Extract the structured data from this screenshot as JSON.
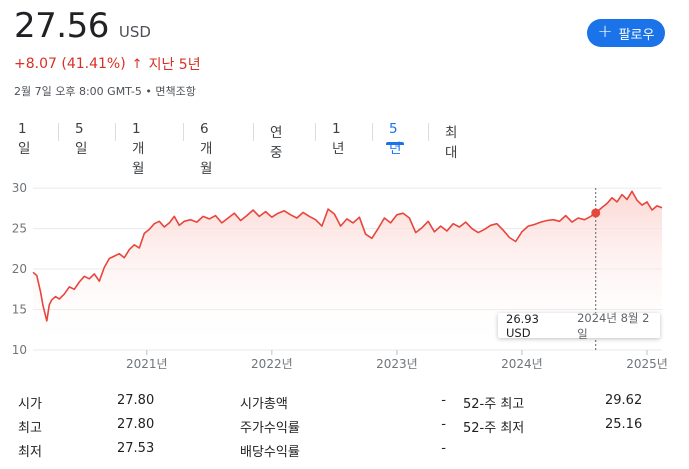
{
  "quote": {
    "price": "27.56",
    "currency": "USD",
    "change": "+8.07 (41.41%)",
    "change_arrow": "↑",
    "period_label": "지난 5년",
    "timestamp": "2월 7일 오후 8:00 GMT-5 • 면책조항"
  },
  "follow_button": {
    "label": "팔로우"
  },
  "range_tabs": [
    {
      "label": "1일"
    },
    {
      "label": "5일"
    },
    {
      "label": "1개월"
    },
    {
      "label": "6개월"
    },
    {
      "label": "연중"
    },
    {
      "label": "1년"
    },
    {
      "label": "5년",
      "active": true
    },
    {
      "label": "최대"
    }
  ],
  "tooltip": {
    "value": "26.93 USD",
    "date": "2024년 8월 2일"
  },
  "colors": {
    "line": "#e8453c",
    "accent": "#1a73e8",
    "fill_top": "#fbd6d2"
  },
  "chart_data": {
    "type": "area",
    "title": "",
    "xlabel": "",
    "ylabel": "",
    "ylim": [
      10,
      31
    ],
    "yticks": [
      10,
      15,
      20,
      25,
      30
    ],
    "xtick_labels": [
      "2021년",
      "2022년",
      "2023년",
      "2024년",
      "2025년"
    ],
    "xtick_values": [
      2021.0,
      2022.0,
      2023.0,
      2024.0,
      2025.0
    ],
    "xlim": [
      2020.09,
      2025.12
    ],
    "grid": true,
    "highlight": {
      "x": 2024.59,
      "y": 26.93
    },
    "series": [
      {
        "x": [
          2020.09,
          2020.12,
          2020.15,
          2020.17,
          2020.2,
          2020.22,
          2020.24,
          2020.27,
          2020.3,
          2020.34,
          2020.38,
          2020.42,
          2020.46,
          2020.5,
          2020.54,
          2020.58,
          2020.62,
          2020.66,
          2020.7,
          2020.74,
          2020.78,
          2020.82,
          2020.86,
          2020.9,
          2020.94,
          2020.98,
          2021.02,
          2021.06,
          2021.1,
          2021.14,
          2021.18,
          2021.22,
          2021.26,
          2021.3,
          2021.35,
          2021.4,
          2021.45,
          2021.5,
          2021.55,
          2021.6,
          2021.65,
          2021.7,
          2021.75,
          2021.8,
          2021.85,
          2021.9,
          2021.95,
          2022.0,
          2022.05,
          2022.1,
          2022.15,
          2022.2,
          2022.25,
          2022.3,
          2022.35,
          2022.4,
          2022.45,
          2022.5,
          2022.55,
          2022.6,
          2022.65,
          2022.7,
          2022.75,
          2022.8,
          2022.85,
          2022.9,
          2022.95,
          2023.0,
          2023.05,
          2023.1,
          2023.15,
          2023.2,
          2023.25,
          2023.3,
          2023.35,
          2023.4,
          2023.45,
          2023.5,
          2023.55,
          2023.6,
          2023.65,
          2023.7,
          2023.75,
          2023.8,
          2023.85,
          2023.9,
          2023.95,
          2024.0,
          2024.05,
          2024.1,
          2024.15,
          2024.2,
          2024.25,
          2024.3,
          2024.35,
          2024.4,
          2024.45,
          2024.5,
          2024.55,
          2024.59,
          2024.64,
          2024.68,
          2024.72,
          2024.76,
          2024.8,
          2024.84,
          2024.88,
          2024.92,
          2024.96,
          2025.0,
          2025.04,
          2025.08,
          2025.12
        ],
        "values": [
          19.6,
          19.2,
          17.2,
          15.5,
          13.6,
          15.6,
          16.2,
          16.6,
          16.3,
          16.9,
          17.8,
          17.5,
          18.4,
          19.1,
          18.8,
          19.4,
          18.5,
          20.2,
          21.3,
          21.6,
          21.9,
          21.4,
          22.4,
          23.0,
          22.6,
          24.4,
          24.9,
          25.6,
          25.9,
          25.2,
          25.7,
          26.5,
          25.4,
          25.9,
          26.1,
          25.8,
          26.5,
          26.2,
          26.6,
          25.7,
          26.3,
          26.9,
          26.0,
          26.6,
          27.3,
          26.5,
          27.1,
          26.4,
          26.9,
          27.2,
          26.7,
          26.3,
          27.0,
          26.5,
          26.1,
          25.3,
          27.4,
          26.8,
          25.3,
          26.2,
          25.7,
          26.4,
          24.3,
          23.8,
          25.0,
          26.3,
          25.7,
          26.7,
          26.9,
          26.3,
          24.5,
          25.1,
          25.9,
          24.6,
          25.3,
          24.7,
          25.6,
          25.2,
          25.8,
          25.0,
          24.5,
          24.9,
          25.4,
          25.6,
          24.8,
          23.9,
          23.4,
          24.6,
          25.3,
          25.5,
          25.8,
          26.0,
          26.1,
          25.9,
          26.6,
          25.8,
          26.3,
          26.1,
          26.5,
          26.93,
          27.6,
          28.1,
          28.8,
          28.3,
          29.2,
          28.6,
          29.6,
          28.5,
          27.9,
          28.3,
          27.3,
          27.8,
          27.56
        ]
      }
    ]
  },
  "stats": [
    {
      "label": "시가",
      "value": "27.80"
    },
    {
      "label": "최고",
      "value": "27.80"
    },
    {
      "label": "최저",
      "value": "27.53"
    },
    {
      "label": "시가총액",
      "value": "-"
    },
    {
      "label": "주가수익률",
      "value": "-"
    },
    {
      "label": "배당수익률",
      "value": "-"
    },
    {
      "label": "52-주 최고",
      "value": "29.62"
    },
    {
      "label": "52-주 최저",
      "value": "25.16"
    }
  ]
}
